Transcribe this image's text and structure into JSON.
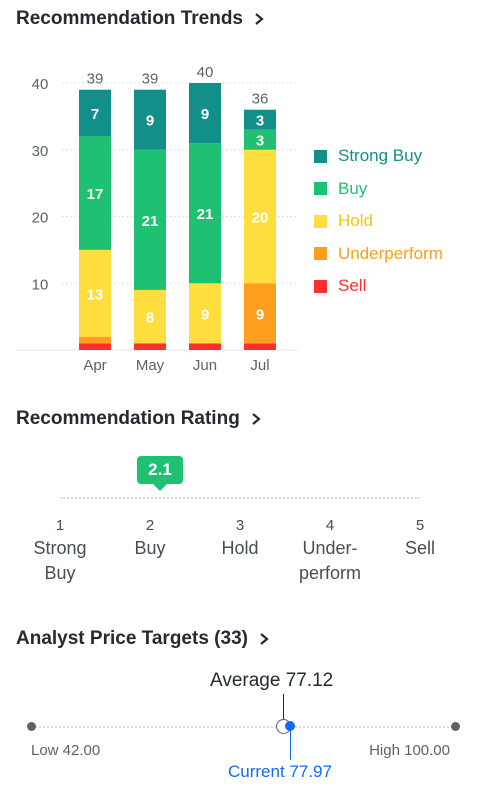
{
  "trends": {
    "title": "Recommendation Trends",
    "colors": {
      "strong_buy": "#138f8a",
      "buy": "#1ec072",
      "hold": "#ffde3e",
      "underperform": "#fd9e1e",
      "sell": "#ff2f2f"
    },
    "legend": [
      {
        "label": "Strong Buy",
        "color": "#138f8a",
        "icon": "square-swatch"
      },
      {
        "label": "Buy",
        "color": "#1ec072",
        "icon": "square-swatch"
      },
      {
        "label": "Hold",
        "color": "#ffde3e",
        "icon": "square-swatch"
      },
      {
        "label": "Underperform",
        "color": "#fd9e1e",
        "icon": "square-swatch"
      },
      {
        "label": "Sell",
        "color": "#ff2f2f",
        "icon": "square-swatch"
      }
    ]
  },
  "chart_data": {
    "type": "bar",
    "stacked": true,
    "categories": [
      "Apr",
      "May",
      "Jun",
      "Jul"
    ],
    "totals": [
      39,
      39,
      40,
      36
    ],
    "ylim": [
      0,
      40
    ],
    "yticks": [
      10,
      20,
      30,
      40
    ],
    "grid": true,
    "legend_position": "right",
    "series": [
      {
        "name": "Sell",
        "values": [
          1,
          1,
          1,
          1
        ]
      },
      {
        "name": "Underperform",
        "values": [
          1,
          0,
          0,
          9
        ]
      },
      {
        "name": "Hold",
        "values": [
          13,
          8,
          9,
          20
        ]
      },
      {
        "name": "Buy",
        "values": [
          17,
          21,
          21,
          3
        ]
      },
      {
        "name": "Strong Buy",
        "values": [
          7,
          9,
          9,
          3
        ]
      }
    ]
  },
  "rating": {
    "title": "Recommendation Rating",
    "value": "2.1",
    "value_numeric": 2.1,
    "scale": [
      {
        "num": "1",
        "label_lines": [
          "Strong",
          "Buy"
        ]
      },
      {
        "num": "2",
        "label_lines": [
          "Buy"
        ]
      },
      {
        "num": "3",
        "label_lines": [
          "Hold"
        ]
      },
      {
        "num": "4",
        "label_lines": [
          "Under-",
          "perform"
        ]
      },
      {
        "num": "5",
        "label_lines": [
          "Sell"
        ]
      }
    ]
  },
  "targets": {
    "title": "Analyst Price Targets (33)",
    "average_label": "Average 77.12",
    "current_label": "Current 77.97",
    "low_label": "Low 42.00",
    "high_label": "High 100.00",
    "low": 42.0,
    "high": 100.0,
    "average": 77.12,
    "current": 77.97,
    "current_color": "#0f69ff"
  }
}
